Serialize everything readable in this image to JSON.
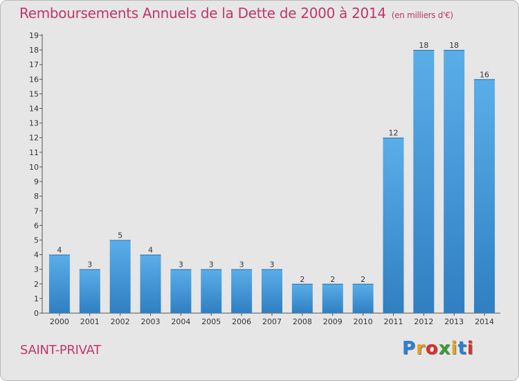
{
  "header": {
    "title": "Remboursements Annuels de la Dette de 2000 à 2014",
    "unit": "(en milliers d'€)"
  },
  "footer": {
    "commune": "SAINT-PRIVAT",
    "logo": "Proxiti",
    "logo_colors": [
      "#2b7fd6",
      "#e8a21c",
      "#d9302f",
      "#3b9b3b",
      "#e8a21c",
      "#2b7fd6",
      "#d9302f"
    ]
  },
  "chart_data": {
    "type": "bar",
    "title": "Remboursements Annuels de la Dette de 2000 à 2014",
    "xlabel": "",
    "ylabel": "",
    "categories": [
      "2000",
      "2001",
      "2002",
      "2003",
      "2004",
      "2005",
      "2006",
      "2007",
      "2008",
      "2009",
      "2010",
      "2011",
      "2012",
      "2013",
      "2014"
    ],
    "values": [
      4,
      3,
      5,
      4,
      3,
      3,
      3,
      3,
      2,
      2,
      2,
      12,
      18,
      18,
      16
    ],
    "ylim": [
      0,
      19
    ],
    "yticks": [
      0,
      1,
      2,
      3,
      4,
      5,
      6,
      7,
      8,
      9,
      10,
      11,
      12,
      13,
      14,
      15,
      16,
      17,
      18,
      19
    ],
    "grid": false,
    "bar_color_light": "#5aaee8",
    "bar_color_dark": "#2f7fc2",
    "background": "#e6e6e6"
  }
}
